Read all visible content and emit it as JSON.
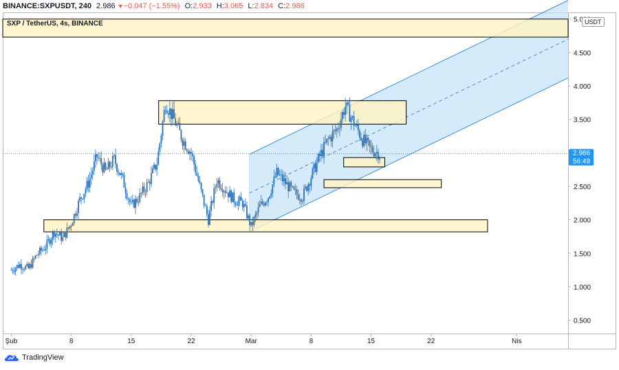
{
  "header": {
    "symbol": "BINANCE:SXPUSDT, 240",
    "last": "2.986",
    "change": "−0.047 (−1.55%)",
    "o_label": "O:",
    "o": "2.933",
    "h_label": "H:",
    "h": "3.065",
    "l_label": "L:",
    "l": "2.834",
    "c_label": "C:",
    "c": "2.986"
  },
  "chart_title": "SXP / TetherUS, 4s, BINANCE",
  "currency_badge": "USDT",
  "price_label": {
    "value": "2.986",
    "countdown": "56:49"
  },
  "brand": "TradingView",
  "colors": {
    "up": "#26a69a",
    "down": "#ef5350",
    "candle": "#2d6fb4",
    "zone_fill": "#fff3c2",
    "channel_fill": "#bfe0f8",
    "channel_line": "#3f8fd8",
    "price_line": "#2196f3"
  },
  "chart_data": {
    "type": "candlestick",
    "y_ticks": [
      "5.000",
      "4.500",
      "4.000",
      "3.500",
      "3.000",
      "2.500",
      "2.000",
      "1.500",
      "1.000",
      "0.500"
    ],
    "y_tick_values": [
      5.0,
      4.5,
      4.0,
      3.5,
      3.0,
      2.5,
      2.0,
      1.5,
      1.0,
      0.5
    ],
    "ylim": [
      0.3,
      5.1
    ],
    "x_ticks": [
      "Şub",
      "8",
      "15",
      "22",
      "Mar",
      "8",
      "15",
      "22",
      "Nis"
    ],
    "x_tick_days": [
      0,
      7,
      14,
      21,
      28,
      35,
      42,
      49,
      59
    ],
    "xlim": [
      -1,
      65
    ],
    "last_price": 2.986,
    "price_path": [
      [
        0,
        1.25
      ],
      [
        1,
        1.33
      ],
      [
        2,
        1.27
      ],
      [
        3,
        1.48
      ],
      [
        4,
        1.6
      ],
      [
        5,
        1.82
      ],
      [
        6,
        1.72
      ],
      [
        7,
        1.95
      ],
      [
        8,
        2.3
      ],
      [
        9,
        2.55
      ],
      [
        10,
        2.95
      ],
      [
        11,
        2.72
      ],
      [
        12,
        2.9
      ],
      [
        13,
        2.6
      ],
      [
        14,
        2.2
      ],
      [
        15,
        2.35
      ],
      [
        16,
        2.55
      ],
      [
        17,
        2.85
      ],
      [
        18,
        3.75
      ],
      [
        19,
        3.5
      ],
      [
        20,
        3.2
      ],
      [
        21,
        3.0
      ],
      [
        22,
        2.5
      ],
      [
        23,
        2.0
      ],
      [
        24,
        2.6
      ],
      [
        25,
        2.45
      ],
      [
        26,
        2.3
      ],
      [
        27,
        2.25
      ],
      [
        28,
        1.9
      ],
      [
        29,
        2.2
      ],
      [
        30,
        2.35
      ],
      [
        31,
        2.7
      ],
      [
        32,
        2.55
      ],
      [
        33,
        2.4
      ],
      [
        34,
        2.35
      ],
      [
        35,
        2.65
      ],
      [
        36,
        2.95
      ],
      [
        37,
        3.2
      ],
      [
        38,
        3.35
      ],
      [
        39,
        3.7
      ],
      [
        40,
        3.45
      ],
      [
        41,
        3.2
      ],
      [
        42,
        3.05
      ],
      [
        43,
        2.99
      ]
    ],
    "zones": [
      {
        "top": 5.0,
        "bottom": 4.73,
        "from_day": -1,
        "to_day": 65
      },
      {
        "top": 3.78,
        "bottom": 3.43,
        "from_day": 17.2,
        "to_day": 46.1
      },
      {
        "top": 2.93,
        "bottom": 2.79,
        "from_day": 38.8,
        "to_day": 43.6
      },
      {
        "top": 2.6,
        "bottom": 2.48,
        "from_day": 36.5,
        "to_day": 50.2
      },
      {
        "top": 2.0,
        "bottom": 1.82,
        "from_day": 3.8,
        "to_day": 55.6
      }
    ],
    "channel": {
      "from_day": 27.8,
      "to_day": 65,
      "lower_start": 1.82,
      "lower_end": 4.12,
      "upper_start": 2.98,
      "upper_end": 5.28
    },
    "grid": false
  }
}
